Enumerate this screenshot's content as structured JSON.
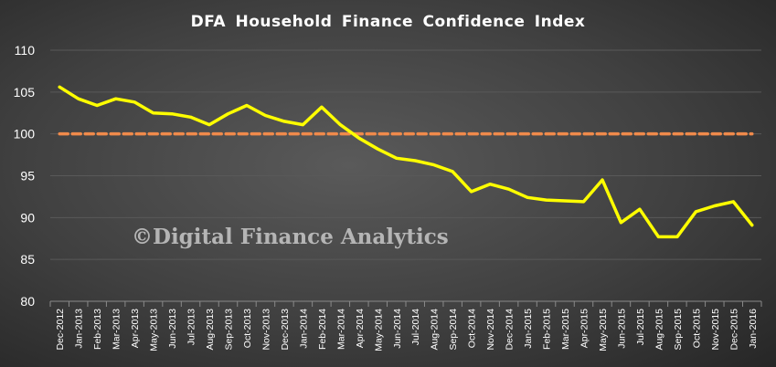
{
  "chart_data": {
    "type": "line",
    "title": "DFA Household Finance Confidence Index",
    "xlabel": "",
    "ylabel": "",
    "ylim": [
      80,
      110
    ],
    "yticks": [
      80,
      85,
      90,
      95,
      100,
      105,
      110
    ],
    "grid": true,
    "legend": "none",
    "categories": [
      "Dec-2012",
      "Jan-2013",
      "Feb-2013",
      "Mar-2013",
      "Apr-2013",
      "May-2013",
      "Jun-2013",
      "Jul-2013",
      "Aug-2013",
      "Sep-2013",
      "Oct-2013",
      "Nov-2013",
      "Dec-2013",
      "Jan-2014",
      "Feb-2014",
      "Mar-2014",
      "Apr-2014",
      "May-2014",
      "Jun-2014",
      "Jul-2014",
      "Aug-2014",
      "Sep-2014",
      "Oct-2014",
      "Nov-2014",
      "Dec-2014",
      "Jan-2015",
      "Feb-2015",
      "Mar-2015",
      "Apr-2015",
      "May-2015",
      "Jun-2015",
      "Jul-2015",
      "Aug-2015",
      "Sep-2015",
      "Oct-2015",
      "Nov-2015",
      "Dec-2015",
      "Jan-2016"
    ],
    "series": [
      {
        "color": "#ffff00",
        "values": [
          105.6,
          104.2,
          103.4,
          104.2,
          103.8,
          102.5,
          102.4,
          102.0,
          101.1,
          102.4,
          103.4,
          102.2,
          101.5,
          101.1,
          103.2,
          101.1,
          99.5,
          98.2,
          97.1,
          96.8,
          96.3,
          95.5,
          93.1,
          94.0,
          93.4,
          92.4,
          92.1,
          92.0,
          91.9,
          94.5,
          89.4,
          91.0,
          87.7,
          87.7,
          90.7,
          91.4,
          91.9,
          89.1
        ]
      }
    ],
    "reference_line": {
      "value": 100,
      "color": "#f08a4b",
      "style": "dashed"
    }
  },
  "watermark": "©Digital Finance Analytics",
  "colors": {
    "background": "#404040",
    "grid": "#595959",
    "text": "#ffffff"
  }
}
